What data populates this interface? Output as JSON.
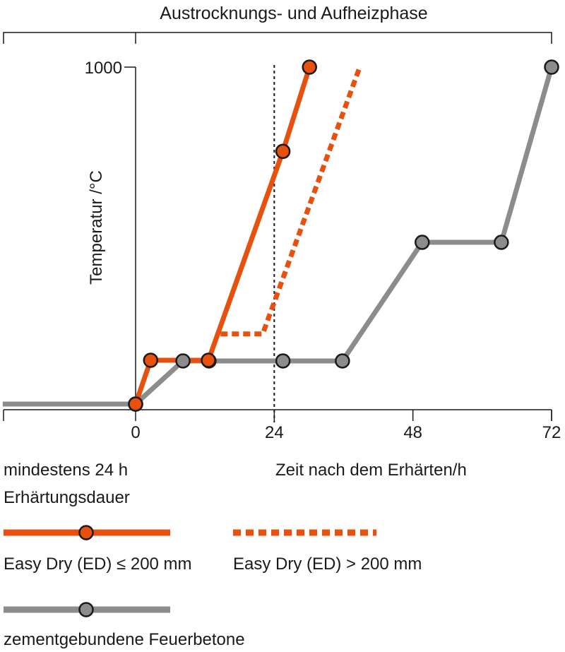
{
  "chart_data": {
    "type": "line",
    "title": "Austrocknungs- und Aufheizphase",
    "xlabel": "Zeit nach dem Erhärten/h",
    "ylabel": "Temperatur /°C",
    "pre_phase_label": [
      "mindestens 24 h",
      "Erhärtungsdauer"
    ],
    "x_ticks": [
      0,
      24,
      48,
      72
    ],
    "y_ticks": [
      1000
    ],
    "xlim": [
      -23,
      72
    ],
    "ylim": [
      0,
      1000
    ],
    "reference_line_x": 24,
    "series": [
      {
        "name": "Easy Dry (ED) ≤ 200 mm",
        "color": "#e8500e",
        "style": "solid",
        "markers": true,
        "x": [
          0,
          2.6,
          12.6,
          25.5,
          30.1
        ],
        "y": [
          0,
          130,
          130,
          750,
          1000
        ]
      },
      {
        "name": "Easy Dry (ED) > 200 mm",
        "color": "#e8500e",
        "style": "dashed",
        "markers": false,
        "x": [
          14.7,
          22,
          38.8
        ],
        "y": [
          208,
          208,
          1000
        ]
      },
      {
        "name": "zementgebundene Feuerbetone",
        "color": "#8c8c8c",
        "style": "solid",
        "markers": true,
        "x": [
          -23,
          0,
          8.2,
          12.7,
          25.5,
          35.8,
          49.6,
          63.3,
          72
        ],
        "y": [
          0,
          0,
          128,
          128,
          128,
          128,
          480,
          480,
          1000
        ],
        "marker_indices": [
          1,
          2,
          3,
          4,
          5,
          6,
          7,
          8
        ]
      }
    ]
  }
}
